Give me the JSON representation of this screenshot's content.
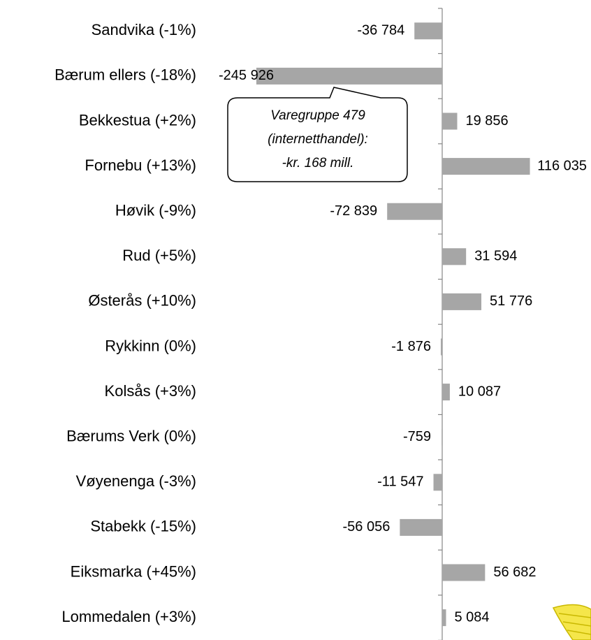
{
  "chart_data": {
    "type": "barh",
    "categories": [
      "Sandvika (-1%)",
      "Bærum ellers (-18%)",
      "Bekkestua (+2%)",
      "Fornebu (+13%)",
      "Høvik (-9%)",
      "Rud (+5%)",
      "Østerås (+10%)",
      "Rykkinn (0%)",
      "Kolsås (+3%)",
      "Bærums Verk (0%)",
      "Vøyenenga (-3%)",
      "Stabekk (-15%)",
      "Eiksmarka (+45%)",
      "Lommedalen (+3%)"
    ],
    "values": [
      -36784,
      -245926,
      19856,
      116035,
      -72839,
      31594,
      51776,
      -1876,
      10087,
      -759,
      -11547,
      -56056,
      56682,
      5084
    ],
    "value_labels": [
      "-36 784",
      "-245 926",
      "19 856",
      "116 035",
      "-72 839",
      "31 594",
      "51 776",
      "-1 876",
      "10 087",
      "-759",
      "-11 547",
      "-56 056",
      "56 682",
      "5 084"
    ],
    "color": "#a6a6a6",
    "xlim": [
      -250000,
      195000
    ],
    "annotation": [
      "Varegruppe 479",
      "(internetthandel):",
      "-kr. 168 mill."
    ]
  }
}
